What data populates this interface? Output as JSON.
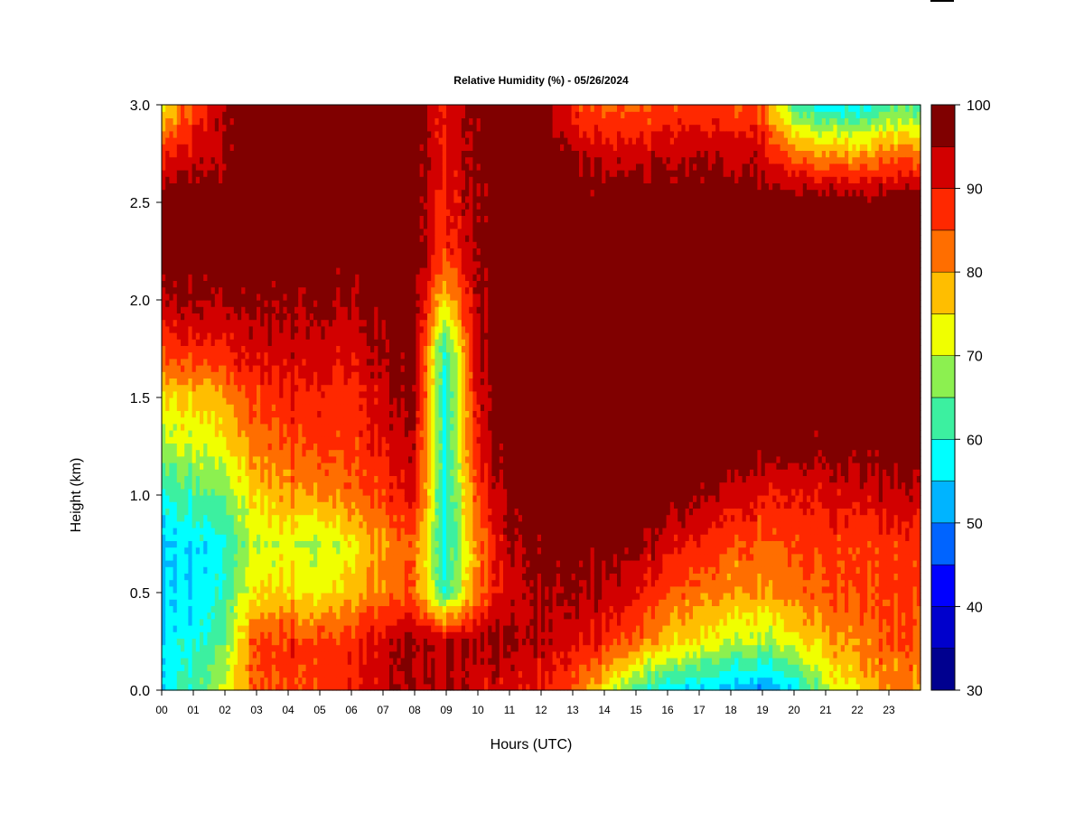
{
  "chart_data": {
    "type": "heatmap",
    "title": "Relative Humidity (%) - 05/26/2024",
    "xlabel": "Hours (UTC)",
    "ylabel": "Height (km)",
    "x_ticks": [
      "00",
      "01",
      "02",
      "03",
      "04",
      "05",
      "06",
      "07",
      "08",
      "09",
      "10",
      "11",
      "12",
      "13",
      "14",
      "15",
      "16",
      "17",
      "18",
      "19",
      "20",
      "21",
      "22",
      "23"
    ],
    "y_ticks": [
      "0.0",
      "0.5",
      "1.0",
      "1.5",
      "2.0",
      "2.5",
      "3.0"
    ],
    "xlim": [
      0,
      24
    ],
    "ylim": [
      0,
      3.0
    ],
    "grid": false,
    "colorbar": {
      "label_ticks": [
        "100",
        "90",
        "80",
        "70",
        "60",
        "50",
        "40",
        "30"
      ],
      "levels": [
        30,
        35,
        40,
        45,
        50,
        55,
        60,
        65,
        70,
        75,
        80,
        85,
        90,
        95,
        100
      ],
      "colors": [
        "#00008f",
        "#0000cc",
        "#0000ff",
        "#0064ff",
        "#00b4ff",
        "#00ffff",
        "#3cf0a0",
        "#8cf050",
        "#f0ff00",
        "#ffbe00",
        "#ff6e00",
        "#ff2800",
        "#d20000",
        "#800000"
      ]
    },
    "hours": [
      0,
      1,
      2,
      3,
      4,
      5,
      6,
      7,
      8,
      9,
      10,
      11,
      12,
      13,
      14,
      15,
      16,
      17,
      18,
      19,
      20,
      21,
      22,
      23,
      24
    ],
    "heights_km": [
      0.0,
      0.25,
      0.5,
      0.75,
      1.0,
      1.25,
      1.5,
      1.75,
      2.0,
      2.25,
      2.5,
      2.75,
      3.0
    ],
    "rh_grid": [
      [
        57,
        62,
        72,
        84,
        87,
        87,
        90,
        93,
        95,
        95,
        92,
        90,
        90,
        84,
        74,
        63,
        57,
        55,
        53,
        50,
        55,
        68,
        76,
        80,
        80
      ],
      [
        55,
        58,
        66,
        86,
        88,
        86,
        88,
        93,
        96,
        95,
        96,
        95,
        94,
        92,
        88,
        83,
        78,
        74,
        70,
        68,
        72,
        78,
        82,
        84,
        84
      ],
      [
        54,
        55,
        62,
        75,
        76,
        72,
        78,
        82,
        84,
        60,
        84,
        92,
        95,
        96,
        94,
        90,
        86,
        82,
        80,
        80,
        82,
        85,
        86,
        86,
        86
      ],
      [
        54,
        55,
        60,
        70,
        73,
        68,
        74,
        80,
        84,
        58,
        82,
        94,
        97,
        98,
        98,
        96,
        93,
        88,
        85,
        84,
        85,
        86,
        87,
        87,
        87
      ],
      [
        60,
        62,
        67,
        76,
        80,
        80,
        83,
        87,
        91,
        58,
        87,
        96,
        98,
        99,
        99,
        99,
        99,
        96,
        93,
        90,
        90,
        91,
        92,
        93,
        93
      ],
      [
        68,
        70,
        74,
        82,
        86,
        86,
        86,
        91,
        94,
        58,
        91,
        98,
        99,
        99,
        99,
        99,
        99,
        99,
        99,
        98,
        97,
        97,
        98,
        98,
        98
      ],
      [
        74,
        76,
        80,
        86,
        90,
        88,
        88,
        93,
        96,
        58,
        93,
        99,
        99,
        99,
        99,
        99,
        99,
        99,
        99,
        99,
        99,
        99,
        99,
        99,
        99
      ],
      [
        86,
        88,
        90,
        92,
        94,
        92,
        92,
        96,
        97,
        60,
        95,
        99,
        99,
        99,
        99,
        99,
        99,
        99,
        99,
        99,
        99,
        99,
        99,
        99,
        99
      ],
      [
        94,
        95,
        96,
        97,
        97,
        96,
        96,
        98,
        98,
        75,
        96,
        99,
        99,
        99,
        99,
        99,
        99,
        99,
        99,
        99,
        99,
        99,
        99,
        99,
        99
      ],
      [
        99,
        99,
        99,
        99,
        99,
        98,
        98,
        99,
        99,
        86,
        97,
        99,
        99,
        99,
        99,
        99,
        99,
        99,
        99,
        99,
        99,
        99,
        99,
        99,
        99
      ],
      [
        99,
        99,
        99,
        99,
        99,
        99,
        99,
        99,
        99,
        88,
        97,
        99,
        99,
        99,
        99,
        99,
        99,
        99,
        99,
        99,
        99,
        99,
        99,
        99,
        99
      ],
      [
        88,
        92,
        96,
        99,
        99,
        99,
        99,
        99,
        99,
        90,
        98,
        99,
        99,
        96,
        92,
        92,
        94,
        94,
        93,
        92,
        82,
        80,
        80,
        82,
        82
      ],
      [
        72,
        86,
        96,
        99,
        99,
        99,
        99,
        99,
        99,
        90,
        98,
        99,
        99,
        88,
        84,
        84,
        86,
        86,
        86,
        84,
        62,
        55,
        58,
        62,
        62
      ]
    ]
  }
}
